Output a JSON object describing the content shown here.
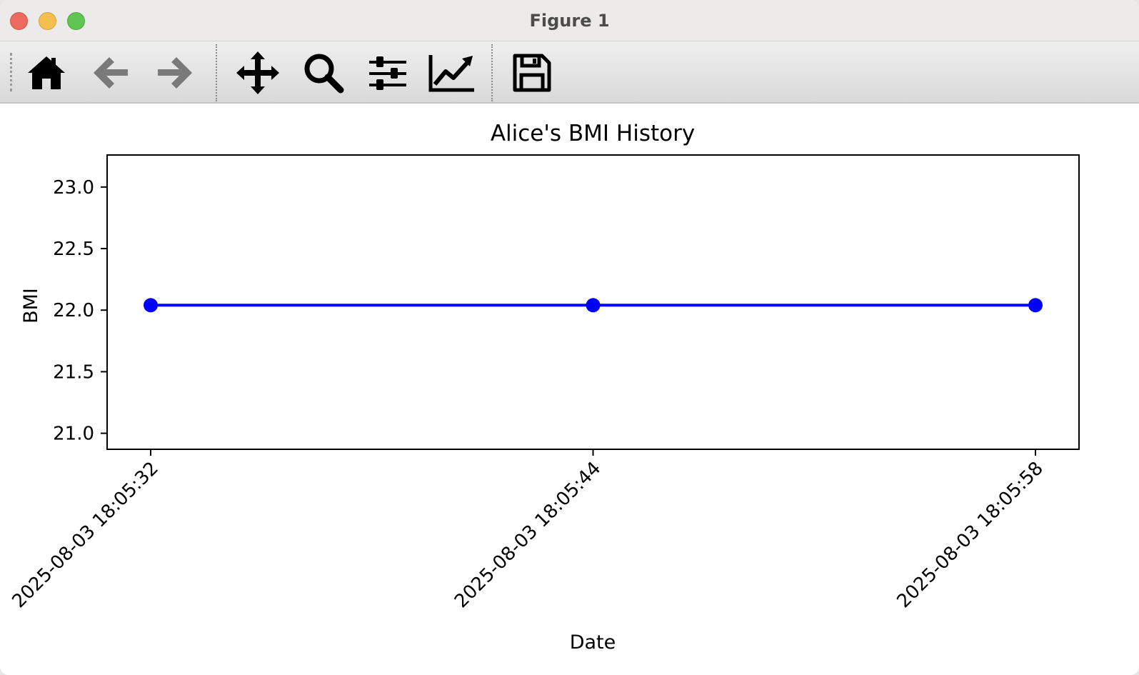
{
  "window": {
    "title": "Figure 1"
  },
  "toolbar": {
    "buttons": [
      {
        "name": "home-button",
        "icon": "home-icon"
      },
      {
        "name": "back-button",
        "icon": "arrow-left-icon"
      },
      {
        "name": "forward-button",
        "icon": "arrow-right-icon"
      },
      {
        "name": "pan-button",
        "icon": "move-icon"
      },
      {
        "name": "zoom-button",
        "icon": "magnifier-icon"
      },
      {
        "name": "subplots-button",
        "icon": "sliders-icon"
      },
      {
        "name": "edit-axes-button",
        "icon": "line-chart-icon"
      },
      {
        "name": "save-button",
        "icon": "floppy-disk-icon"
      }
    ]
  },
  "chart_data": {
    "type": "line",
    "title": "Alice's BMI History",
    "xlabel": "Date",
    "ylabel": "BMI",
    "categories": [
      "2025-08-03 18:05:32",
      "2025-08-03 18:05:44",
      "2025-08-03 18:05:58"
    ],
    "series": [
      {
        "values": [
          22.04,
          22.04,
          22.04
        ],
        "color": "#0000ff",
        "marker": "circle"
      }
    ],
    "yticks": [
      "21.0",
      "21.5",
      "22.0",
      "22.5",
      "23.0"
    ],
    "ylim": [
      20.87,
      23.26
    ],
    "grid": false,
    "x_tick_rotation_deg": 45
  }
}
